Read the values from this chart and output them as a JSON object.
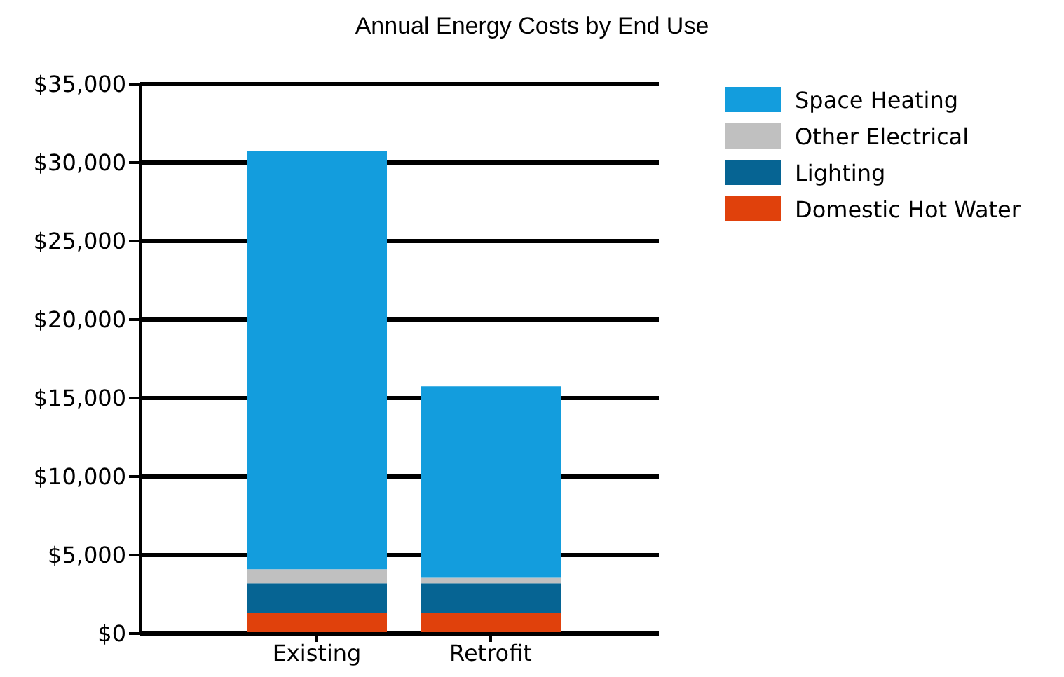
{
  "chart_data": {
    "type": "bar",
    "title": "Annual Energy Costs by End Use",
    "categories": [
      "Existing",
      "Retrofit"
    ],
    "stacked": true,
    "series": [
      {
        "name": "Domestic Hot Water",
        "color": "#e0410c",
        "values": [
          1300,
          1300
        ]
      },
      {
        "name": "Lighting",
        "color": "#066493",
        "values": [
          1900,
          1900
        ]
      },
      {
        "name": "Other Electrical",
        "color": "#c0c0c0",
        "values": [
          900,
          350
        ]
      },
      {
        "name": "Space Heating",
        "color": "#139ddd",
        "values": [
          26650,
          12200
        ]
      }
    ],
    "ylim": [
      0,
      35000
    ],
    "yticks": [
      {
        "value": 0,
        "label": "$0"
      },
      {
        "value": 5000,
        "label": "$5,000"
      },
      {
        "value": 10000,
        "label": "$10,000"
      },
      {
        "value": 15000,
        "label": "$15,000"
      },
      {
        "value": 20000,
        "label": "$20,000"
      },
      {
        "value": 25000,
        "label": "$25,000"
      },
      {
        "value": 30000,
        "label": "$30,000"
      },
      {
        "value": 35000,
        "label": "$35,000"
      }
    ],
    "grid": "y",
    "legend": "top right"
  }
}
